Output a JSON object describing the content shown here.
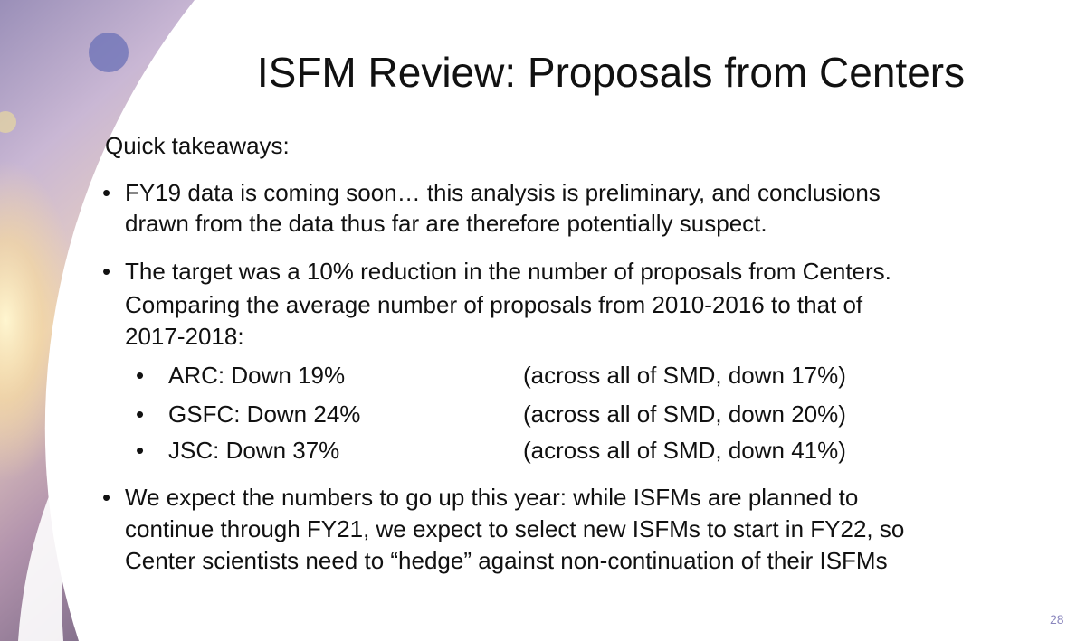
{
  "slide": {
    "title": "ISFM Review: Proposals from Centers",
    "intro": "Quick takeaways:",
    "bullets": [
      {
        "lines": [
          "FY19 data is coming soon… this analysis is preliminary, and conclusions",
          "drawn from the data thus far are therefore potentially suspect."
        ]
      },
      {
        "lines": [
          "The target was a 10% reduction in the number of proposals from Centers.",
          "Comparing the average number of proposals from 2010-2016 to that of",
          "2017-2018:"
        ],
        "sub": [
          {
            "center": "ARC:  Down 19%",
            "smd": "(across all of SMD, down 17%)"
          },
          {
            "center": "GSFC: Down 24%",
            "smd": "(across all of SMD, down 20%)"
          },
          {
            "center": "JSC: Down 37%",
            "smd": "(across all of SMD, down 41%)"
          }
        ]
      },
      {
        "lines": [
          "We expect the numbers to go up this year: while ISFMs are planned to",
          "continue through FY21, we expect to select new ISFMs to start in FY22, so",
          "Center scientists need to “hedge” against non-continuation of their ISFMs"
        ]
      }
    ],
    "bullet_glyph": "•",
    "page_number": "28"
  },
  "colors": {
    "page_number": "#8a86bd",
    "text": "#111111"
  }
}
